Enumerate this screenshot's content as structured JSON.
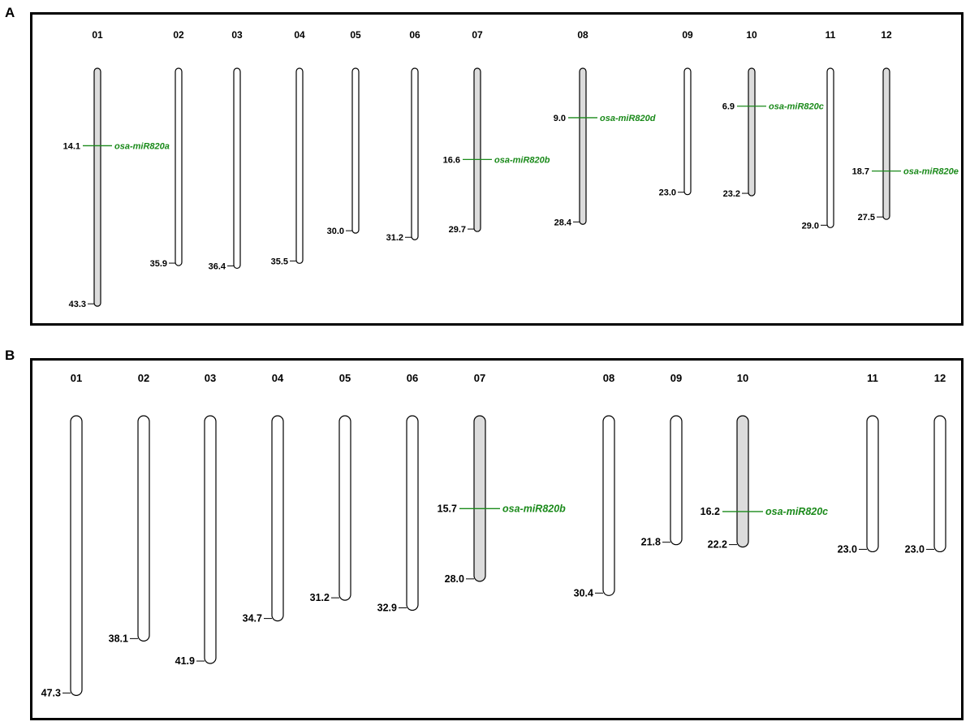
{
  "figure": {
    "panels": [
      {
        "letter": "A",
        "chromosomes": [
          {
            "name": "01",
            "length": "43.3",
            "length_value": 43.3,
            "highlighted": true,
            "markers": [
              {
                "position": "14.1",
                "position_value": 14.1,
                "gene": "osa-miR820a"
              }
            ]
          },
          {
            "name": "02",
            "length": "35.9",
            "length_value": 35.9,
            "highlighted": false,
            "markers": []
          },
          {
            "name": "03",
            "length": "36.4",
            "length_value": 36.4,
            "highlighted": false,
            "markers": []
          },
          {
            "name": "04",
            "length": "35.5",
            "length_value": 35.5,
            "highlighted": false,
            "markers": []
          },
          {
            "name": "05",
            "length": "30.0",
            "length_value": 30.0,
            "highlighted": false,
            "markers": []
          },
          {
            "name": "06",
            "length": "31.2",
            "length_value": 31.2,
            "highlighted": false,
            "markers": []
          },
          {
            "name": "07",
            "length": "29.7",
            "length_value": 29.7,
            "highlighted": true,
            "markers": [
              {
                "position": "16.6",
                "position_value": 16.6,
                "gene": "osa-miR820b"
              }
            ]
          },
          {
            "name": "08",
            "length": "28.4",
            "length_value": 28.4,
            "highlighted": true,
            "markers": [
              {
                "position": "9.0",
                "position_value": 9.0,
                "gene": "osa-miR820d"
              }
            ]
          },
          {
            "name": "09",
            "length": "23.0",
            "length_value": 23.0,
            "highlighted": false,
            "markers": []
          },
          {
            "name": "10",
            "length": "23.2",
            "length_value": 23.2,
            "highlighted": true,
            "markers": [
              {
                "position": "6.9",
                "position_value": 6.9,
                "gene": "osa-miR820c"
              }
            ]
          },
          {
            "name": "11",
            "length": "29.0",
            "length_value": 29.0,
            "highlighted": false,
            "markers": []
          },
          {
            "name": "12",
            "length": "27.5",
            "length_value": 27.5,
            "highlighted": true,
            "markers": [
              {
                "position": "18.7",
                "position_value": 18.7,
                "gene": "osa-miR820e"
              }
            ]
          }
        ]
      },
      {
        "letter": "B",
        "chromosomes": [
          {
            "name": "01",
            "length": "47.3",
            "length_value": 47.3,
            "highlighted": false,
            "markers": []
          },
          {
            "name": "02",
            "length": "38.1",
            "length_value": 38.1,
            "highlighted": false,
            "markers": []
          },
          {
            "name": "03",
            "length": "41.9",
            "length_value": 41.9,
            "highlighted": false,
            "markers": []
          },
          {
            "name": "04",
            "length": "34.7",
            "length_value": 34.7,
            "highlighted": false,
            "markers": []
          },
          {
            "name": "05",
            "length": "31.2",
            "length_value": 31.2,
            "highlighted": false,
            "markers": []
          },
          {
            "name": "06",
            "length": "32.9",
            "length_value": 32.9,
            "highlighted": false,
            "markers": []
          },
          {
            "name": "07",
            "length": "28.0",
            "length_value": 28.0,
            "highlighted": true,
            "markers": [
              {
                "position": "15.7",
                "position_value": 15.7,
                "gene": "osa-miR820b"
              }
            ]
          },
          {
            "name": "08",
            "length": "30.4",
            "length_value": 30.4,
            "highlighted": false,
            "markers": []
          },
          {
            "name": "09",
            "length": "21.8",
            "length_value": 21.8,
            "highlighted": false,
            "markers": []
          },
          {
            "name": "10",
            "length": "22.2",
            "length_value": 22.2,
            "highlighted": true,
            "markers": [
              {
                "position": "16.2",
                "position_value": 16.2,
                "gene": "osa-miR820c"
              }
            ]
          },
          {
            "name": "11",
            "length": "23.0",
            "length_value": 23.0,
            "highlighted": false,
            "markers": []
          },
          {
            "name": "12",
            "length": "23.0",
            "length_value": 23.0,
            "highlighted": false,
            "markers": []
          }
        ]
      }
    ]
  },
  "colors": {
    "highlight_fill": "#dcdcdc",
    "plain_fill": "#ffffff",
    "outline": "#000000",
    "marker": "#1a8a1a",
    "marker_text": "#1a8a1a"
  }
}
